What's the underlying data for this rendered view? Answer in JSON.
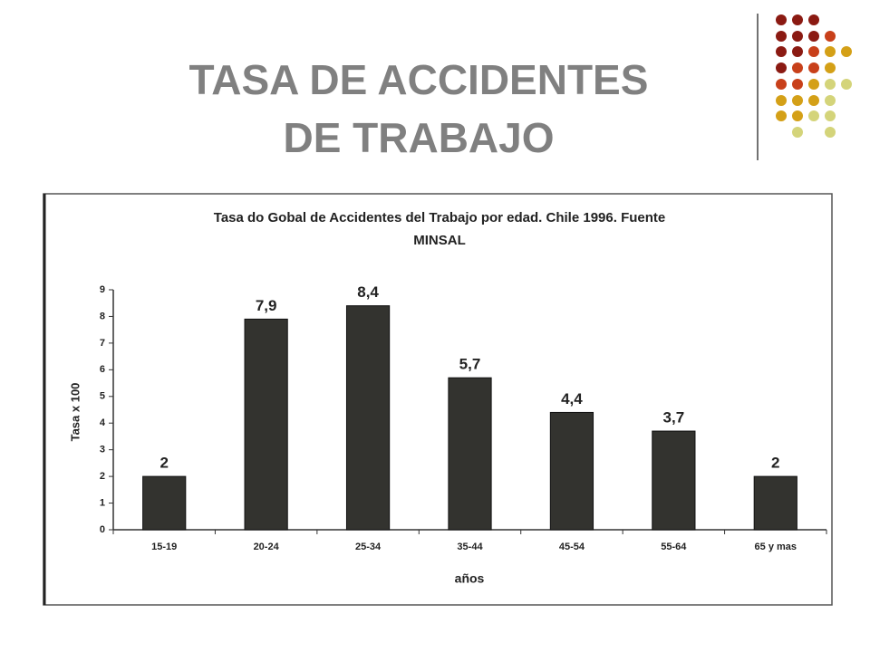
{
  "slide_title": [
    "TASA DE ACCIDENTES",
    "DE TRABAJO"
  ],
  "chart_data": {
    "type": "bar",
    "title": [
      "Tasa do Gobal de Accidentes del Trabajo por edad. Chile 1996. Fuente",
      "MINSAL"
    ],
    "categories": [
      "15-19",
      "20-24",
      "25-34",
      "35-44",
      "45-54",
      "55-64",
      "65 y mas"
    ],
    "values": [
      2,
      7.9,
      8.4,
      5.7,
      4.4,
      3.7,
      2
    ],
    "value_labels": [
      "2",
      "7,9",
      "8,4",
      "5,7",
      "4,4",
      "3,7",
      "2"
    ],
    "color": "#33332f",
    "x_label": "años",
    "y_label": "Tasa x 100",
    "ylim": [
      0,
      9
    ],
    "yticks": [
      0,
      1,
      2,
      3,
      4,
      5,
      6,
      7,
      8,
      9
    ]
  }
}
